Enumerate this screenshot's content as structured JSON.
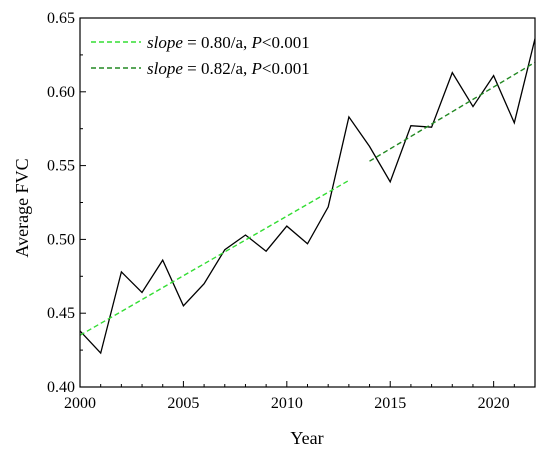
{
  "chart_data": {
    "type": "line",
    "xlabel": "Year",
    "ylabel": "Average FVC",
    "xlim": [
      2000,
      2022
    ],
    "ylim": [
      0.4,
      0.65
    ],
    "x_ticks": [
      2000,
      2005,
      2010,
      2015,
      2020
    ],
    "y_ticks": [
      0.4,
      0.45,
      0.5,
      0.55,
      0.6,
      0.65
    ],
    "x_tick_labels": [
      "2000",
      "2005",
      "2010",
      "2015",
      "2020"
    ],
    "y_tick_labels": [
      "0.40",
      "0.45",
      "0.50",
      "0.55",
      "0.60",
      "0.65"
    ],
    "grid": false,
    "legend_position": "top-left",
    "series": [
      {
        "kind": "line",
        "color": "#000000",
        "x": [
          2000,
          2001,
          2002,
          2003,
          2004,
          2005,
          2006,
          2007,
          2008,
          2009,
          2010,
          2011,
          2012,
          2013,
          2014,
          2015,
          2016,
          2017,
          2018,
          2019,
          2020,
          2021,
          2022
        ],
        "y": [
          0.438,
          0.423,
          0.478,
          0.464,
          0.486,
          0.455,
          0.47,
          0.493,
          0.503,
          0.492,
          0.509,
          0.497,
          0.522,
          0.583,
          0.563,
          0.539,
          0.577,
          0.576,
          0.613,
          0.59,
          0.611,
          0.579,
          0.636
        ]
      },
      {
        "kind": "trend",
        "color": "#33dd33",
        "dash": "dashed",
        "x": [
          2000,
          2013
        ],
        "y": [
          0.435,
          0.54
        ],
        "legend": {
          "italic": "slope",
          "rest": " = 0.80/a, ",
          "p_italic": "P",
          "p_rest": "<0.001"
        }
      },
      {
        "kind": "trend",
        "color": "#228822",
        "dash": "dashed",
        "x": [
          2014,
          2022
        ],
        "y": [
          0.553,
          0.62
        ],
        "legend": {
          "italic": "slope",
          "rest": " = 0.82/a, ",
          "p_italic": "P",
          "p_rest": "<0.001"
        }
      }
    ]
  }
}
